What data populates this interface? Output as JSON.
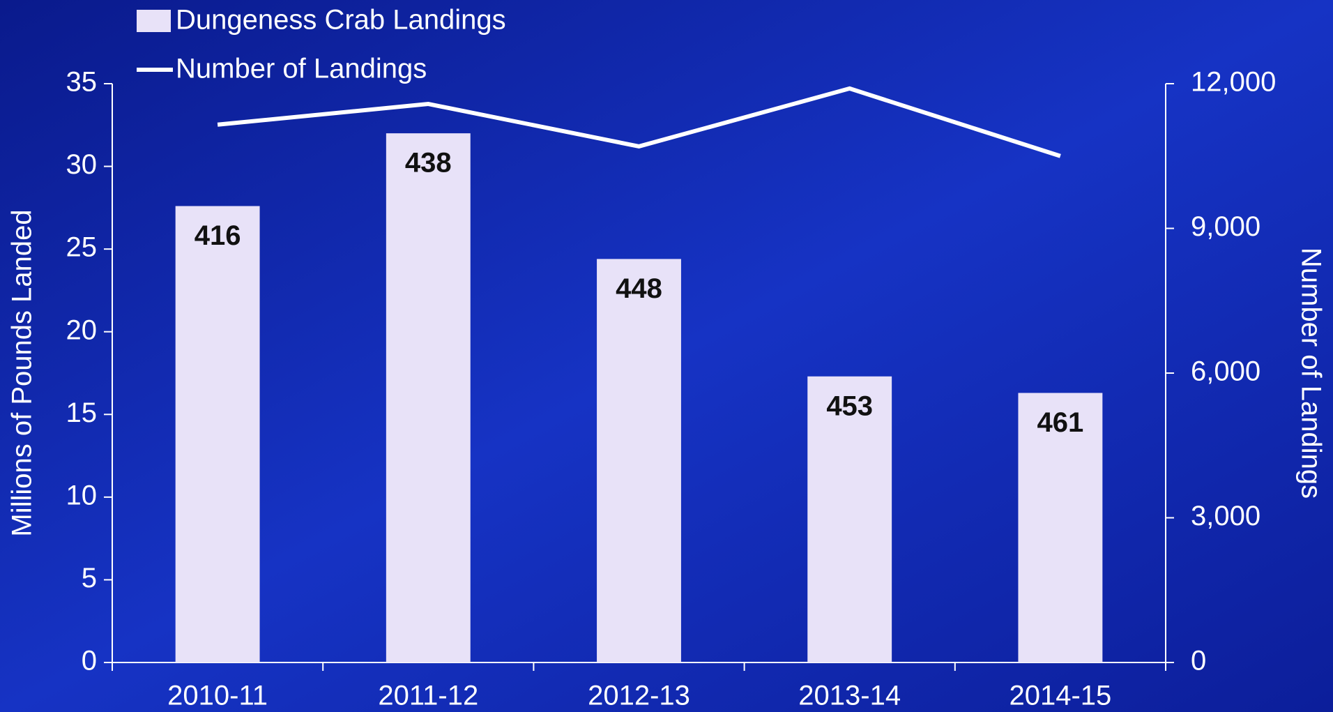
{
  "chart_data": {
    "type": "bar_line",
    "categories": [
      "2010-11",
      "2011-12",
      "2012-13",
      "2013-14",
      "2014-15"
    ],
    "series": [
      {
        "name": "Dungeness Crab Landings",
        "color": "#e8e2f8",
        "type": "bar",
        "values": [
          27.6,
          32.0,
          24.4,
          17.3,
          16.3
        ]
      },
      {
        "name": "Number of Landings",
        "color": "#ffffff",
        "type": "line",
        "axis": "y2",
        "values": [
          11150,
          11580,
          10700,
          11900,
          10500
        ]
      }
    ],
    "bar_labels": [
      416,
      438,
      448,
      453,
      461
    ],
    "ylabel": "Millions of Pounds Landed",
    "y2label": "Number of Landings",
    "ylim": [
      0,
      35
    ],
    "yticks": [
      0,
      5,
      10,
      15,
      20,
      25,
      30,
      35
    ],
    "y2lim": [
      0,
      12000
    ],
    "y2ticks": [
      0,
      {
        "value": 3000,
        "label": "3,000"
      },
      {
        "value": 6000,
        "label": "6,000"
      },
      {
        "value": 9000,
        "label": "9,000"
      },
      {
        "value": 12000,
        "label": "12,000"
      }
    ],
    "legend": "top-left"
  }
}
